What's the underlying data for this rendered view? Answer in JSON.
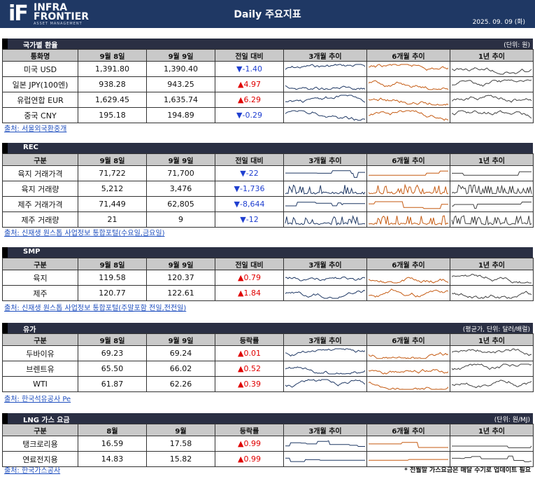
{
  "header": {
    "logo_mark": "iF",
    "logo_line1": "INFRA",
    "logo_line2": "FRONTIER",
    "logo_sub": "ASSET MANAGEMENT",
    "title": "Daily 주요지표",
    "date": "2025. 09. 09 (화)"
  },
  "colors": {
    "header_bg": "#1f3864",
    "up": "#e00000",
    "down": "#1f3fd0",
    "spark_3m": "#1f3864",
    "spark_6m": "#c55a11",
    "spark_1y": "#404040"
  },
  "sections": [
    {
      "title": "국가별 환율",
      "unit": "(단위: 원)",
      "headers": [
        "통화명",
        "9월 8일",
        "9월 9일",
        "전일 대비",
        "3개월 추이",
        "6개월 추이",
        "1년 추이"
      ],
      "rows": [
        {
          "name": "미국 USD",
          "prev": "1,391.80",
          "curr": "1,390.40",
          "dir": "down",
          "change": "-1.40"
        },
        {
          "name": "일본 JPY(100엔)",
          "prev": "938.28",
          "curr": "943.25",
          "dir": "up",
          "change": "4.97"
        },
        {
          "name": "유럽연합 EUR",
          "prev": "1,629.45",
          "curr": "1,635.74",
          "dir": "up",
          "change": "6.29"
        },
        {
          "name": "중국 CNY",
          "prev": "195.18",
          "curr": "194.89",
          "dir": "down",
          "change": "-0.29"
        }
      ],
      "source": "출처: 서울외국환중개"
    },
    {
      "title": "REC",
      "unit": "",
      "headers": [
        "구분",
        "9월 8일",
        "9월 9일",
        "전일 대비",
        "3개월 추이",
        "6개월 추이",
        "1년 추이"
      ],
      "rows": [
        {
          "name": "육지 거래가격",
          "prev": "71,722",
          "curr": "71,700",
          "dir": "down",
          "change": "-22"
        },
        {
          "name": "육지 거래량",
          "prev": "5,212",
          "curr": "3,476",
          "dir": "down",
          "change": "-1,736"
        },
        {
          "name": "제주 거래가격",
          "prev": "71,449",
          "curr": "62,805",
          "dir": "down",
          "change": "-8,644"
        },
        {
          "name": "제주 거래량",
          "prev": "21",
          "curr": "9",
          "dir": "down",
          "change": "-12"
        }
      ],
      "source": "출처: 신재생 원스톱 사업정보 통합포털(수요일,금요일)"
    },
    {
      "title": "SMP",
      "unit": "",
      "headers": [
        "구분",
        "9월 8일",
        "9월 9일",
        "전일 대비",
        "3개월 추이",
        "6개월 추이",
        "1년 추이"
      ],
      "rows": [
        {
          "name": "육지",
          "prev": "119.58",
          "curr": "120.37",
          "dir": "up",
          "change": "0.79"
        },
        {
          "name": "제주",
          "prev": "120.77",
          "curr": "122.61",
          "dir": "up",
          "change": "1.84"
        }
      ],
      "source": "출처: 신재생 원스톱 사업정보 통합포털(주말포함 전일,전전일)"
    },
    {
      "title": "유가",
      "unit": "(평균가, 단위: 달러/배럴)",
      "headers": [
        "구분",
        "9월 8일",
        "9월 9일",
        "등락률",
        "3개월 추이",
        "6개월 추이",
        "1년 추이"
      ],
      "rows": [
        {
          "name": "두바이유",
          "prev": "69.23",
          "curr": "69.24",
          "dir": "up",
          "change": "0.01"
        },
        {
          "name": "브렌트유",
          "prev": "65.50",
          "curr": "66.02",
          "dir": "up",
          "change": "0.52"
        },
        {
          "name": "WTI",
          "prev": "61.87",
          "curr": "62.26",
          "dir": "up",
          "change": "0.39"
        }
      ],
      "source": "출처: 한국석유공사 Pe"
    },
    {
      "title": "LNG 가스 요금",
      "unit": "(단위: 원/MJ)",
      "headers": [
        "구분",
        "8월",
        "9월",
        "등락률",
        "3개월 추이",
        "6개월 추이",
        "1년 추이"
      ],
      "rows": [
        {
          "name": "탱크로리용",
          "prev": "16.59",
          "curr": "17.58",
          "dir": "up",
          "change": "0.99"
        },
        {
          "name": "연료전지용",
          "prev": "14.83",
          "curr": "15.82",
          "dir": "up",
          "change": "0.99"
        }
      ],
      "source": "출처: 한국가스공사",
      "note": "* 전월말 가스요금은 매달 수기로 업데이트 필요"
    }
  ]
}
